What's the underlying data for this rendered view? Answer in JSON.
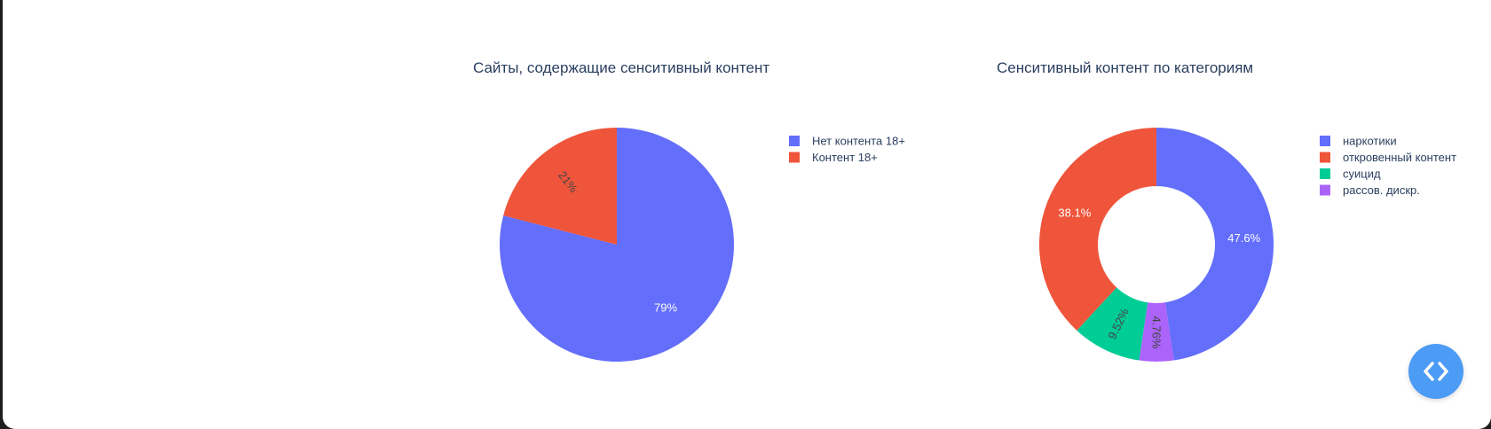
{
  "chart_data": [
    {
      "type": "pie",
      "title": "Сайты, содержащие сенситивный контент",
      "hole": 0,
      "slices": [
        {
          "label": "Нет контента 18+",
          "value": 79,
          "text": "79%",
          "color": "#636efa"
        },
        {
          "label": "Контент 18+",
          "value": 21,
          "text": "21%",
          "color": "#ef553b"
        }
      ],
      "legend_position": "top-right"
    },
    {
      "type": "pie",
      "title": "Сенситивный контент по категориям",
      "hole": 0.5,
      "slices": [
        {
          "label": "наркотики",
          "value": 47.6,
          "text": "47.6%",
          "color": "#636efa"
        },
        {
          "label": "рассов. дискр.",
          "value": 4.76,
          "text": "4.76%",
          "color": "#ab63fa"
        },
        {
          "label": "суицид",
          "value": 9.52,
          "text": "9.52%",
          "color": "#00cc96"
        },
        {
          "label": "откровенный контент",
          "value": 38.1,
          "text": "38.1%",
          "color": "#ef553b"
        }
      ],
      "legend_order": [
        "наркотики",
        "откровенный контент",
        "суицид",
        "рассов. дискр."
      ],
      "legend_position": "top-right"
    }
  ],
  "controls": {
    "code_toggle_icon": "code-brackets-icon"
  }
}
